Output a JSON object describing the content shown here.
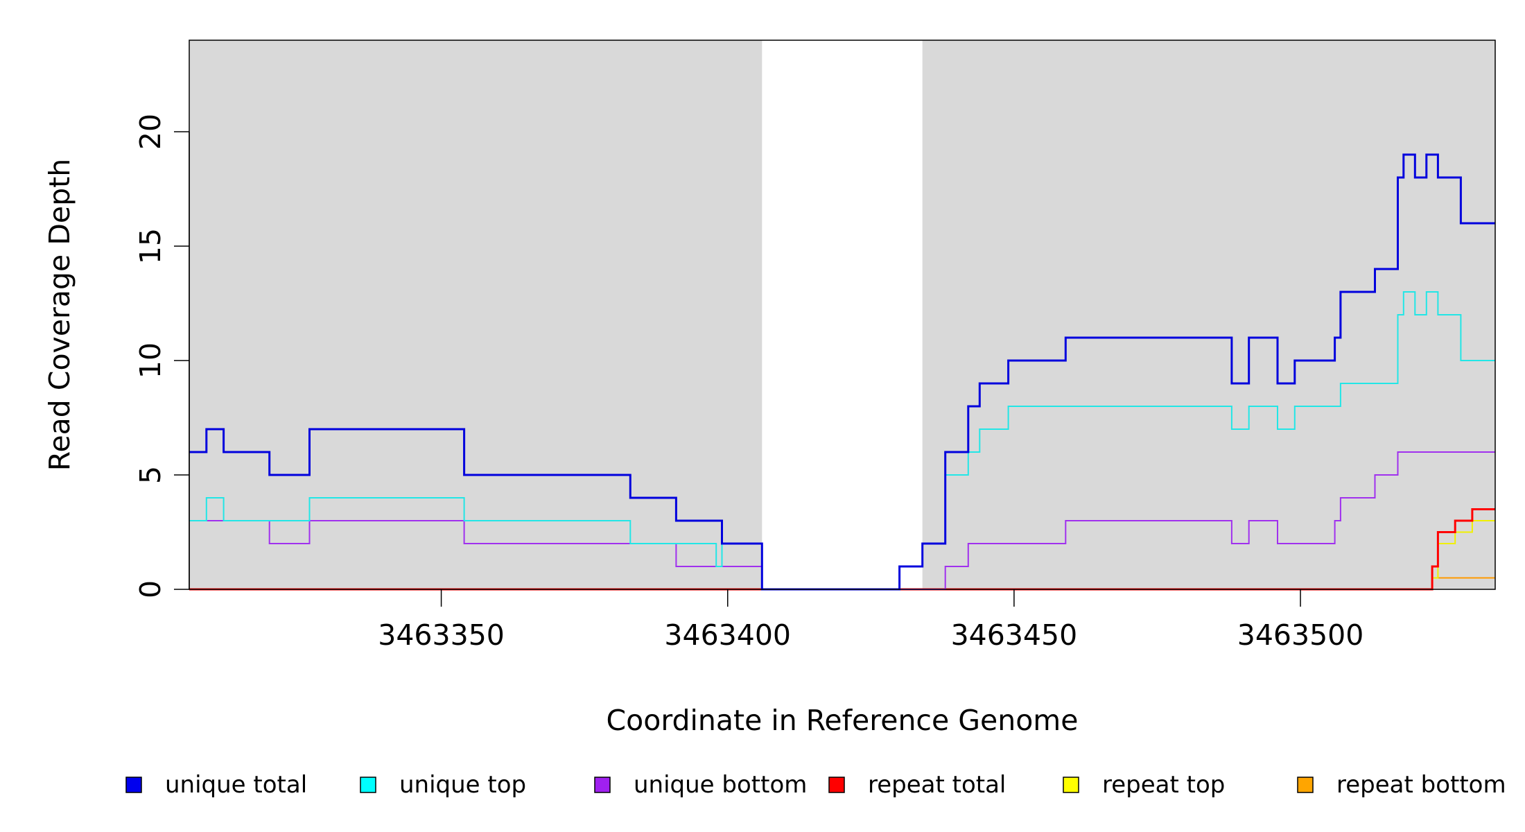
{
  "chart_data": {
    "type": "line",
    "step": true,
    "xlabel": "Coordinate in Reference Genome",
    "ylabel": "Read Coverage Depth",
    "xlim": [
      3463306,
      3463534
    ],
    "ylim": [
      0,
      24
    ],
    "x_ticks": [
      3463350,
      3463400,
      3463450,
      3463500
    ],
    "x_tick_labels": [
      "3463350",
      "3463400",
      "3463450",
      "3463500"
    ],
    "y_ticks": [
      0,
      5,
      10,
      15,
      20
    ],
    "y_tick_labels": [
      "0",
      "5",
      "10",
      "15",
      "20"
    ],
    "shaded_regions": [
      {
        "x0": 3463306,
        "x1": 3463406,
        "color": "#d9d9d9"
      },
      {
        "x0": 3463434,
        "x1": 3463534,
        "color": "#d9d9d9"
      }
    ],
    "legend_position": "bottom",
    "series": [
      {
        "name": "unique total",
        "color": "#0000dd",
        "width": 3,
        "points": [
          [
            3463306,
            6
          ],
          [
            3463309,
            7
          ],
          [
            3463312,
            6
          ],
          [
            3463320,
            5
          ],
          [
            3463327,
            7
          ],
          [
            3463354,
            5
          ],
          [
            3463383,
            4
          ],
          [
            3463391,
            3
          ],
          [
            3463399,
            2
          ],
          [
            3463406,
            0
          ],
          [
            3463430,
            1
          ],
          [
            3463434,
            2
          ],
          [
            3463438,
            6
          ],
          [
            3463442,
            8
          ],
          [
            3463444,
            9
          ],
          [
            3463449,
            10
          ],
          [
            3463459,
            11
          ],
          [
            3463488,
            9
          ],
          [
            3463491,
            11
          ],
          [
            3463496,
            9
          ],
          [
            3463499,
            10
          ],
          [
            3463506,
            11
          ],
          [
            3463507,
            13
          ],
          [
            3463513,
            14
          ],
          [
            3463517,
            18
          ],
          [
            3463518,
            19
          ],
          [
            3463520,
            18
          ],
          [
            3463522,
            19
          ],
          [
            3463524,
            18
          ],
          [
            3463528,
            16
          ],
          [
            3463534,
            16
          ]
        ]
      },
      {
        "name": "unique top",
        "color": "#22e6e6",
        "width": 2,
        "points": [
          [
            3463306,
            3
          ],
          [
            3463309,
            4
          ],
          [
            3463312,
            3
          ],
          [
            3463327,
            4
          ],
          [
            3463354,
            3
          ],
          [
            3463383,
            2
          ],
          [
            3463398,
            1
          ],
          [
            3463399,
            2
          ],
          [
            3463406,
            0
          ],
          [
            3463430,
            1
          ],
          [
            3463434,
            2
          ],
          [
            3463438,
            5
          ],
          [
            3463442,
            6
          ],
          [
            3463444,
            7
          ],
          [
            3463449,
            8
          ],
          [
            3463488,
            7
          ],
          [
            3463491,
            8
          ],
          [
            3463496,
            7
          ],
          [
            3463499,
            8
          ],
          [
            3463507,
            9
          ],
          [
            3463517,
            12
          ],
          [
            3463518,
            13
          ],
          [
            3463520,
            12
          ],
          [
            3463522,
            13
          ],
          [
            3463524,
            12
          ],
          [
            3463528,
            10
          ],
          [
            3463534,
            10
          ]
        ]
      },
      {
        "name": "unique bottom",
        "color": "#a030ee",
        "width": 2,
        "points": [
          [
            3463306,
            3
          ],
          [
            3463320,
            2
          ],
          [
            3463327,
            3
          ],
          [
            3463354,
            2
          ],
          [
            3463391,
            1
          ],
          [
            3463406,
            0
          ],
          [
            3463438,
            1
          ],
          [
            3463442,
            2
          ],
          [
            3463459,
            3
          ],
          [
            3463488,
            2
          ],
          [
            3463491,
            3
          ],
          [
            3463496,
            2
          ],
          [
            3463506,
            3
          ],
          [
            3463507,
            4
          ],
          [
            3463513,
            5
          ],
          [
            3463517,
            6
          ],
          [
            3463534,
            6
          ]
        ]
      },
      {
        "name": "repeat total",
        "color": "#ff0000",
        "width": 3,
        "points": [
          [
            3463306,
            0
          ],
          [
            3463523,
            1
          ],
          [
            3463524,
            2.5
          ],
          [
            3463527,
            3
          ],
          [
            3463530,
            3.5
          ],
          [
            3463532,
            3.5
          ],
          [
            3463534,
            3.5
          ]
        ]
      },
      {
        "name": "repeat top",
        "color": "#f0f000",
        "width": 2,
        "points": [
          [
            3463306,
            0
          ],
          [
            3463523,
            0.5
          ],
          [
            3463524,
            2
          ],
          [
            3463527,
            2.5
          ],
          [
            3463530,
            3
          ],
          [
            3463534,
            3
          ]
        ]
      },
      {
        "name": "repeat bottom",
        "color": "#ff9900",
        "width": 2,
        "points": [
          [
            3463306,
            0
          ],
          [
            3463523,
            0.5
          ],
          [
            3463534,
            0.5
          ]
        ]
      }
    ],
    "legend": [
      {
        "label": "unique total",
        "color": "#0000ee"
      },
      {
        "label": "unique top",
        "color": "#00ffff"
      },
      {
        "label": "unique bottom",
        "color": "#a020f0"
      },
      {
        "label": "repeat total",
        "color": "#ff0000"
      },
      {
        "label": "repeat top",
        "color": "#ffff00"
      },
      {
        "label": "repeat bottom",
        "color": "#ffa500"
      }
    ]
  }
}
